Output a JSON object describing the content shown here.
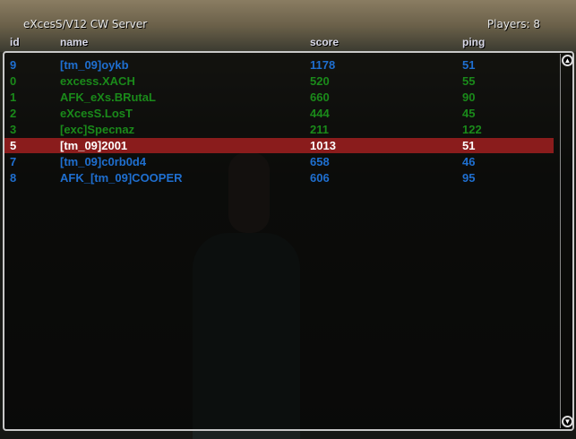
{
  "server_name": "eXcesS/V12 CW Server",
  "players_label": "Players: 8",
  "columns": {
    "id": "id",
    "name": "name",
    "score": "score",
    "ping": "ping"
  },
  "colors": {
    "blue": "#1f6fd0",
    "green": "#1a8a1a",
    "selected_bg": "#8a1c1c",
    "selected_text": "#ffffff"
  },
  "rows": [
    {
      "id": "9",
      "name": "[tm_09]oykb",
      "score": "1178",
      "ping": "51",
      "color": "#1f6fd0"
    },
    {
      "id": "0",
      "name": "excess.XACH",
      "score": "520",
      "ping": "55",
      "color": "#1a8a1a"
    },
    {
      "id": "1",
      "name": "AFK_eXs.BRutaL",
      "score": "660",
      "ping": "90",
      "color": "#1a8a1a"
    },
    {
      "id": "2",
      "name": "eXcesS.LosT",
      "score": "444",
      "ping": "45",
      "color": "#1a8a1a"
    },
    {
      "id": "3",
      "name": "[exc]Specnaz",
      "score": "211",
      "ping": "122",
      "color": "#1a8a1a"
    },
    {
      "id": "5",
      "name": "[tm_09]2001",
      "score": "1013",
      "ping": "51",
      "color": "#ffffff",
      "selected": true
    },
    {
      "id": "7",
      "name": "[tm_09]c0rb0d4",
      "score": "658",
      "ping": "46",
      "color": "#1f6fd0"
    },
    {
      "id": "8",
      "name": "AFK_[tm_09]COOPER",
      "score": "606",
      "ping": "95",
      "color": "#1f6fd0"
    }
  ],
  "scrollbar": {
    "up_icon": "arrow-up-icon",
    "down_icon": "arrow-down-icon"
  }
}
